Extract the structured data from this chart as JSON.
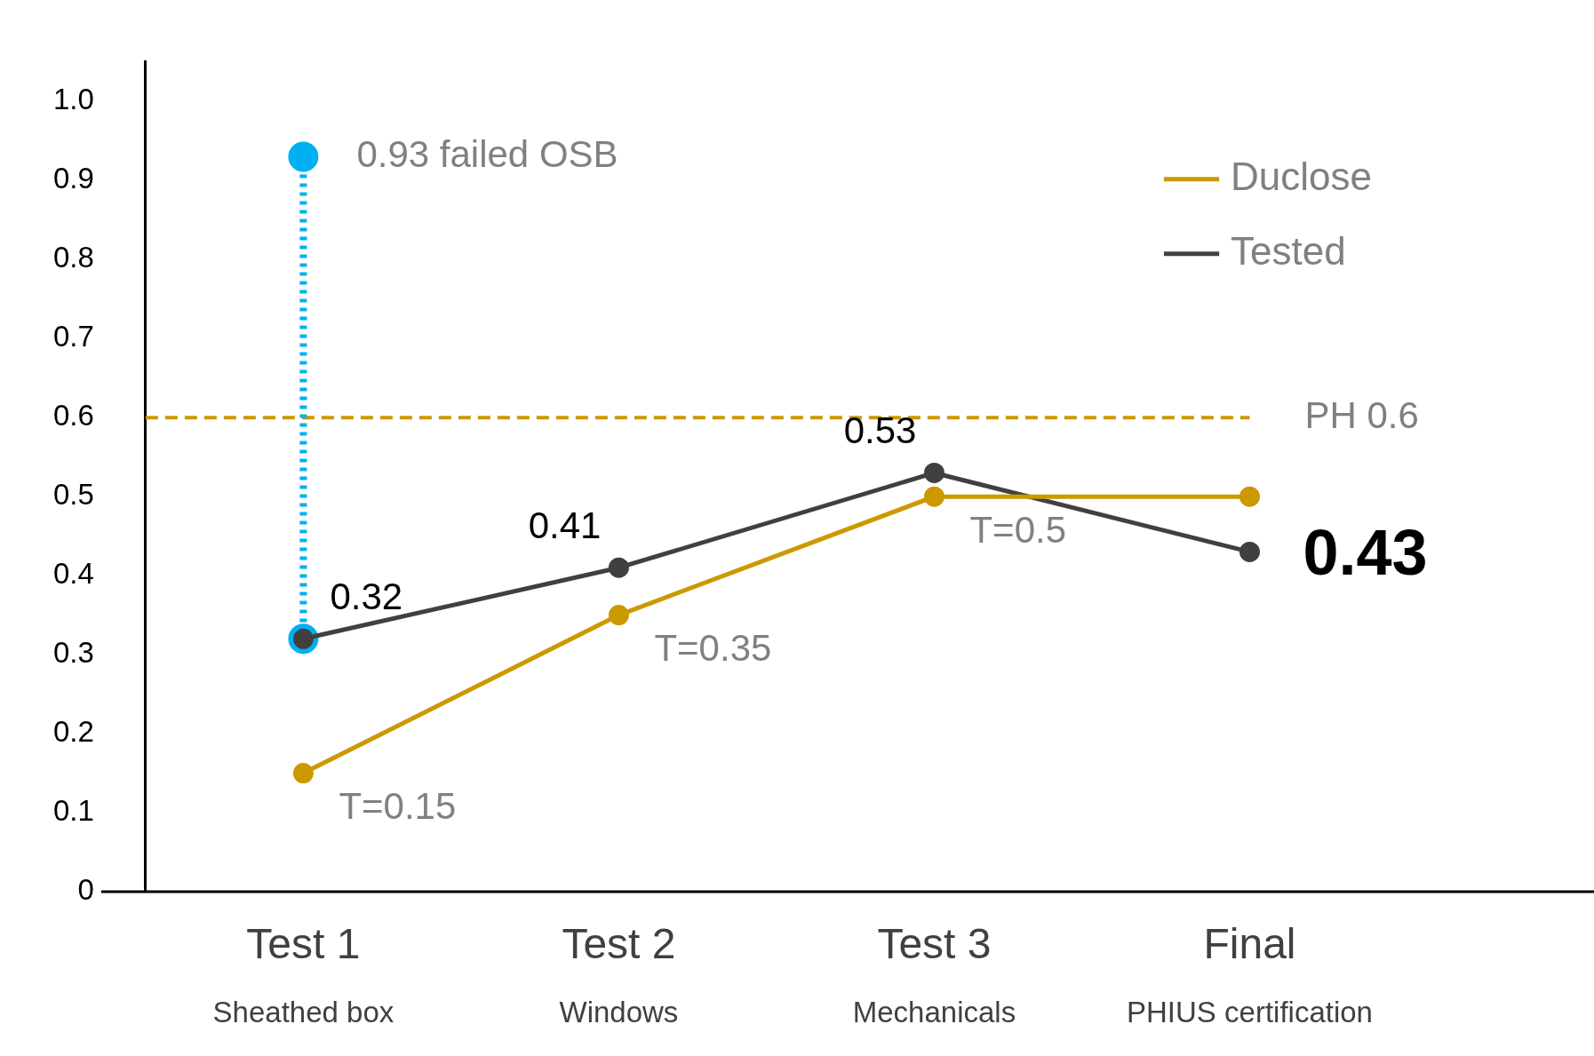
{
  "chart_data": {
    "type": "line",
    "categories": [
      "Test 1\nSheathed box",
      "Test 2\nWindows",
      "Test 3\nMechanicals",
      "Final\nPHIUS certification"
    ],
    "series": [
      {
        "name": "Duclose",
        "color": "#cc9900",
        "values": [
          0.15,
          0.35,
          0.5,
          0.5
        ],
        "value_labels": [
          "T=0.15",
          "T=0.35",
          "T=0.5",
          null
        ]
      },
      {
        "name": "Tested",
        "color": "#404040",
        "values": [
          0.32,
          0.41,
          0.53,
          0.43
        ],
        "value_labels": [
          "0.32",
          "0.41",
          "0.53",
          "0.43"
        ]
      },
      {
        "color": "#00b0f0",
        "x": [
          "Test 1\nSheathed box",
          "Test 1\nSheathed box"
        ],
        "values": [
          0.93,
          0.32
        ],
        "line_style": "dotted"
      }
    ],
    "annotations": [
      {
        "text": "0.93 failed OSB",
        "x": "Test 1\nSheathed box",
        "y": 0.93
      }
    ],
    "ref_lines": [
      {
        "axis": "y",
        "value": 0.6,
        "label": "PH 0.6",
        "color": "#cc9900",
        "line_style": "dashed"
      }
    ],
    "ylim": [
      0,
      1.05
    ],
    "yticks": [
      0,
      0.1,
      0.2,
      0.3,
      0.4,
      0.5,
      0.6,
      0.7,
      0.8,
      0.9,
      {
        "value": 1,
        "label": "1.0"
      }
    ],
    "grid": false,
    "legend": "top right",
    "marker": "circle",
    "line_style": "solid"
  }
}
